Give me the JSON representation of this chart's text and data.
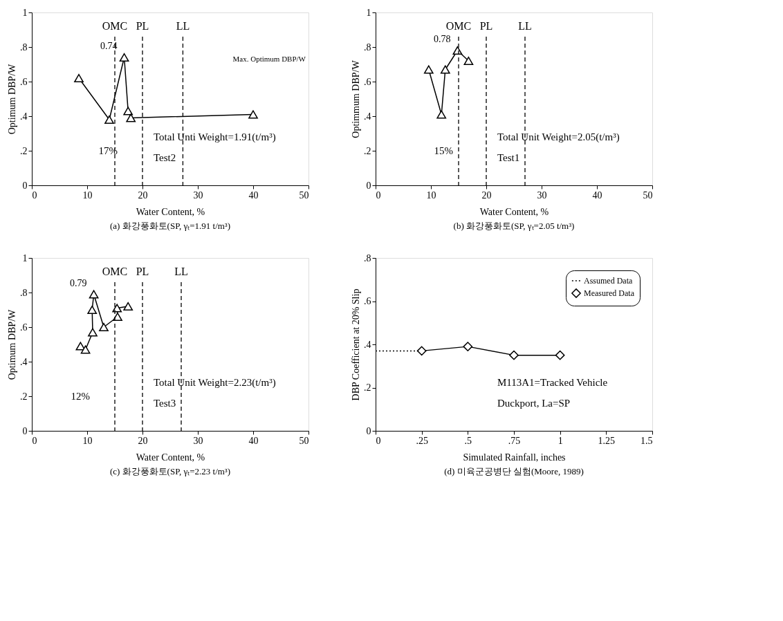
{
  "chart_data": [
    {
      "type": "line",
      "title": "(a) 화강풍화토(SP, γₜ=1.91 t/m³)",
      "xlabel": "Water Content, %",
      "ylabel": "Optimum DBP/W",
      "x": [
        8.5,
        14.0,
        16.7,
        17.4,
        17.9,
        40.0
      ],
      "series": [
        {
          "color": "#000000",
          "values": [
            0.62,
            0.38,
            0.74,
            0.43,
            0.39,
            0.41
          ]
        }
      ],
      "marker": "triangle",
      "line_style": "solid",
      "grid": false,
      "legend": false,
      "xlim": [
        0,
        50
      ],
      "xticks": [
        0,
        10,
        20,
        30,
        40,
        50
      ],
      "ylim": [
        0,
        1
      ],
      "yticks": [
        0,
        {
          "value": 0.2,
          "label": ".2"
        },
        {
          "value": 0.4,
          "label": ".4"
        },
        {
          "value": 0.6,
          "label": ".6"
        },
        {
          "value": 0.8,
          "label": ".8"
        },
        1
      ],
      "ref_lines": [
        {
          "axis": "x",
          "value": 15,
          "label": "OMC",
          "line_style": "dashed"
        },
        {
          "axis": "x",
          "value": 20,
          "label": "PL",
          "line_style": "dashed"
        },
        {
          "axis": "x",
          "value": 27.3,
          "label": "LL",
          "line_style": "dashed"
        }
      ],
      "annotations": [
        {
          "text": "0.74",
          "x": 16.7,
          "y": 0.74
        },
        "17%",
        "Total Unti Weight=1.91(t/m³)",
        "Test2",
        "Max. Optimum DBP/W"
      ]
    },
    {
      "type": "line",
      "title": "(b) 화강풍화토(SP, γₜ=2.05 t/m³)",
      "xlabel": "Water Content, %",
      "ylabel": "Optimmum DBP/W",
      "x": [
        9.6,
        11.9,
        12.6,
        14.8,
        16.8
      ],
      "series": [
        {
          "color": "#000000",
          "values": [
            0.67,
            0.41,
            0.67,
            0.78,
            0.72
          ]
        }
      ],
      "marker": "triangle",
      "line_style": "solid",
      "grid": false,
      "legend": false,
      "xlim": [
        0,
        50
      ],
      "xticks": [
        0,
        10,
        20,
        30,
        40,
        50
      ],
      "ylim": [
        0,
        1
      ],
      "yticks": [
        0,
        {
          "value": 0.2,
          "label": ".2"
        },
        {
          "value": 0.4,
          "label": ".4"
        },
        {
          "value": 0.6,
          "label": ".6"
        },
        {
          "value": 0.8,
          "label": ".8"
        },
        1
      ],
      "ref_lines": [
        {
          "axis": "x",
          "value": 15,
          "label": "OMC",
          "line_style": "dashed"
        },
        {
          "axis": "x",
          "value": 20,
          "label": "PL",
          "line_style": "dashed"
        },
        {
          "axis": "x",
          "value": 27,
          "label": "LL",
          "line_style": "dashed"
        }
      ],
      "annotations": [
        {
          "text": "0.78",
          "x": 14.8,
          "y": 0.78
        },
        "15%",
        "Total Unit Weight=2.05(t/m³)",
        "Test1"
      ]
    },
    {
      "type": "line",
      "title": "(c) 화강풍화토(SP, γₜ=2.23 t/m³)",
      "xlabel": "Water Content, %",
      "ylabel": "Optimum DBP/W",
      "x": [
        8.8,
        9.7,
        11.0,
        10.9,
        11.2,
        13.0,
        15.5,
        15.4,
        17.4
      ],
      "series": [
        {
          "color": "#000000",
          "values": [
            0.49,
            0.47,
            0.57,
            0.7,
            0.79,
            0.6,
            0.66,
            0.71,
            0.72
          ]
        }
      ],
      "marker": "triangle",
      "line_style": "solid",
      "grid": false,
      "legend": false,
      "xlim": [
        0,
        50
      ],
      "xticks": [
        0,
        10,
        20,
        30,
        40,
        50
      ],
      "ylim": [
        0,
        1
      ],
      "yticks": [
        0,
        {
          "value": 0.2,
          "label": ".2"
        },
        {
          "value": 0.4,
          "label": ".4"
        },
        {
          "value": 0.6,
          "label": ".6"
        },
        {
          "value": 0.8,
          "label": ".8"
        },
        1
      ],
      "ref_lines": [
        {
          "axis": "x",
          "value": 15,
          "label": "OMC",
          "line_style": "dashed"
        },
        {
          "axis": "x",
          "value": 20,
          "label": "PL",
          "line_style": "dashed"
        },
        {
          "axis": "x",
          "value": 27,
          "label": "LL",
          "line_style": "dashed"
        }
      ],
      "annotations": [
        {
          "text": "0.79",
          "x": 11.2,
          "y": 0.79
        },
        "12%",
        "Total Unit Weight=2.23(t/m³)",
        "Test3"
      ]
    },
    {
      "type": "line",
      "title": "(d) 미육군공병단 실험(Moore, 1989)",
      "xlabel": "Simulated Rainfall, inches",
      "ylabel": "DBP Coefficient at 20% Slip",
      "series": [
        {
          "name": "Assumed Data",
          "color": "#000000",
          "x": [
            0,
            0.25
          ],
          "values": [
            0.37,
            0.37
          ],
          "line_style": "dotted"
        },
        {
          "name": "Measured Data",
          "color": "#000000",
          "x": [
            0.25,
            0.5,
            0.75,
            1.0
          ],
          "values": [
            0.37,
            0.39,
            0.35,
            0.35
          ],
          "line_style": "solid",
          "marker": "diamond"
        }
      ],
      "grid": false,
      "legend": "top right",
      "xlim": [
        0,
        1.5
      ],
      "xticks": [
        0,
        {
          "value": 0.25,
          "label": ".25"
        },
        {
          "value": 0.5,
          "label": ".5"
        },
        {
          "value": 0.75,
          "label": ".75"
        },
        1,
        1.25,
        1.5
      ],
      "ylim": [
        0,
        0.8
      ],
      "yticks": [
        0,
        {
          "value": 0.2,
          "label": ".2"
        },
        {
          "value": 0.4,
          "label": ".4"
        },
        {
          "value": 0.6,
          "label": ".6"
        },
        {
          "value": 0.8,
          "label": ".8"
        }
      ],
      "annotations": [
        "M113A1=Tracked Vehicle",
        "Duckport, La=SP"
      ]
    }
  ]
}
